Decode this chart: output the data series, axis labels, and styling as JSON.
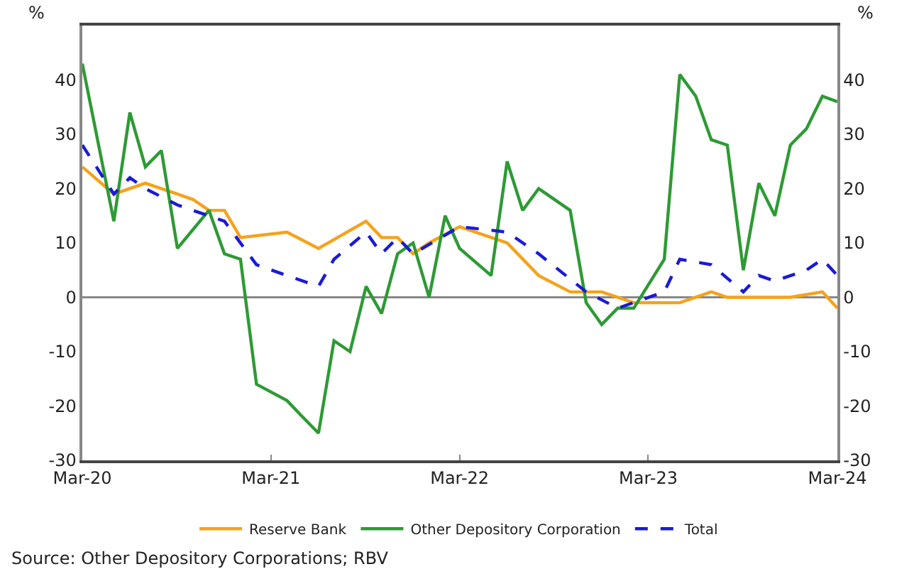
{
  "chart_data": {
    "type": "line",
    "ylabel": "%",
    "y2label": "%",
    "xlim": [
      "2020-03",
      "2024-03"
    ],
    "xticks": [
      {
        "value": "2020-03",
        "label": "Mar-20"
      },
      {
        "value": "2021-03",
        "label": "Mar-21"
      },
      {
        "value": "2022-03",
        "label": "Mar-22"
      },
      {
        "value": "2023-03",
        "label": "Mar-23"
      },
      {
        "value": "2024-03",
        "label": "Mar-24"
      }
    ],
    "ylim": [
      -30,
      50
    ],
    "yticks": [
      -30,
      -20,
      -10,
      0,
      10,
      20,
      30,
      40
    ],
    "y2lim": [
      -30,
      50
    ],
    "y2ticks": [
      -30,
      -20,
      -10,
      0,
      10,
      20,
      30,
      40
    ],
    "grid": false,
    "legend": "bottom",
    "ref_lines": [
      {
        "axis": "y",
        "value": 0,
        "color": "#888888"
      }
    ],
    "marker": "none",
    "annotations": [
      "Source: Other Depository Corporations; RBV"
    ],
    "series": [
      {
        "name": "Reserve Bank",
        "color": "#f5a21b",
        "line_style": "solid",
        "x": [
          "2020-03",
          "2020-05",
          "2020-07",
          "2020-09",
          "2020-10",
          "2020-11",
          "2020-12",
          "2021-01",
          "2021-04",
          "2021-06",
          "2021-09",
          "2021-10",
          "2021-11",
          "2021-12",
          "2022-01",
          "2022-03",
          "2022-06",
          "2022-08",
          "2022-10",
          "2022-12",
          "2023-02",
          "2023-05",
          "2023-07",
          "2023-08",
          "2023-12",
          "2024-02",
          "2024-03"
        ],
        "values": [
          24,
          19,
          21,
          19,
          18,
          16,
          16,
          11,
          12,
          9,
          14,
          11,
          11,
          8,
          10,
          13,
          10,
          4,
          1,
          1,
          -1,
          -1,
          1,
          0,
          0,
          1,
          -2
        ]
      },
      {
        "name": "Other Depository Corporation",
        "color": "#2e9a35",
        "line_style": "solid",
        "x": [
          "2020-03",
          "2020-05",
          "2020-06",
          "2020-07",
          "2020-08",
          "2020-09",
          "2020-11",
          "2020-12",
          "2021-01",
          "2021-02",
          "2021-04",
          "2021-05",
          "2021-06",
          "2021-07",
          "2021-08",
          "2021-09",
          "2021-10",
          "2021-11",
          "2021-12",
          "2022-01",
          "2022-02",
          "2022-03",
          "2022-05",
          "2022-06",
          "2022-07",
          "2022-08",
          "2022-10",
          "2022-11",
          "2022-12",
          "2023-01",
          "2023-02",
          "2023-04",
          "2023-05",
          "2023-06",
          "2023-07",
          "2023-08",
          "2023-09",
          "2023-10",
          "2023-11",
          "2023-12",
          "2024-01",
          "2024-02",
          "2024-03"
        ],
        "values": [
          43,
          14,
          34,
          24,
          27,
          9,
          16,
          8,
          7,
          -16,
          -19,
          -22,
          -25,
          -8,
          -10,
          2,
          -3,
          8,
          10,
          0,
          15,
          9,
          4,
          25,
          16,
          20,
          16,
          -1,
          -5,
          -2,
          -2,
          7,
          41,
          37,
          29,
          28,
          5,
          21,
          15,
          28,
          31,
          37,
          36
        ]
      },
      {
        "name": "Total",
        "color": "#1a1ad6",
        "line_style": "dashed",
        "x": [
          "2020-03",
          "2020-05",
          "2020-06",
          "2020-07",
          "2020-09",
          "2020-10",
          "2020-12",
          "2021-02",
          "2021-04",
          "2021-06",
          "2021-07",
          "2021-09",
          "2021-10",
          "2021-11",
          "2021-12",
          "2022-03",
          "2022-06",
          "2022-08",
          "2022-11",
          "2023-01",
          "2023-04",
          "2023-05",
          "2023-07",
          "2023-09",
          "2023-10",
          "2023-11",
          "2024-01",
          "2024-02",
          "2024-03"
        ],
        "values": [
          28,
          19,
          22,
          20,
          17,
          16,
          14,
          6,
          4,
          2,
          7,
          12,
          8,
          11,
          8,
          13,
          12,
          8,
          1,
          -2,
          1,
          7,
          6,
          1,
          4,
          3,
          5,
          7,
          4
        ]
      }
    ]
  }
}
